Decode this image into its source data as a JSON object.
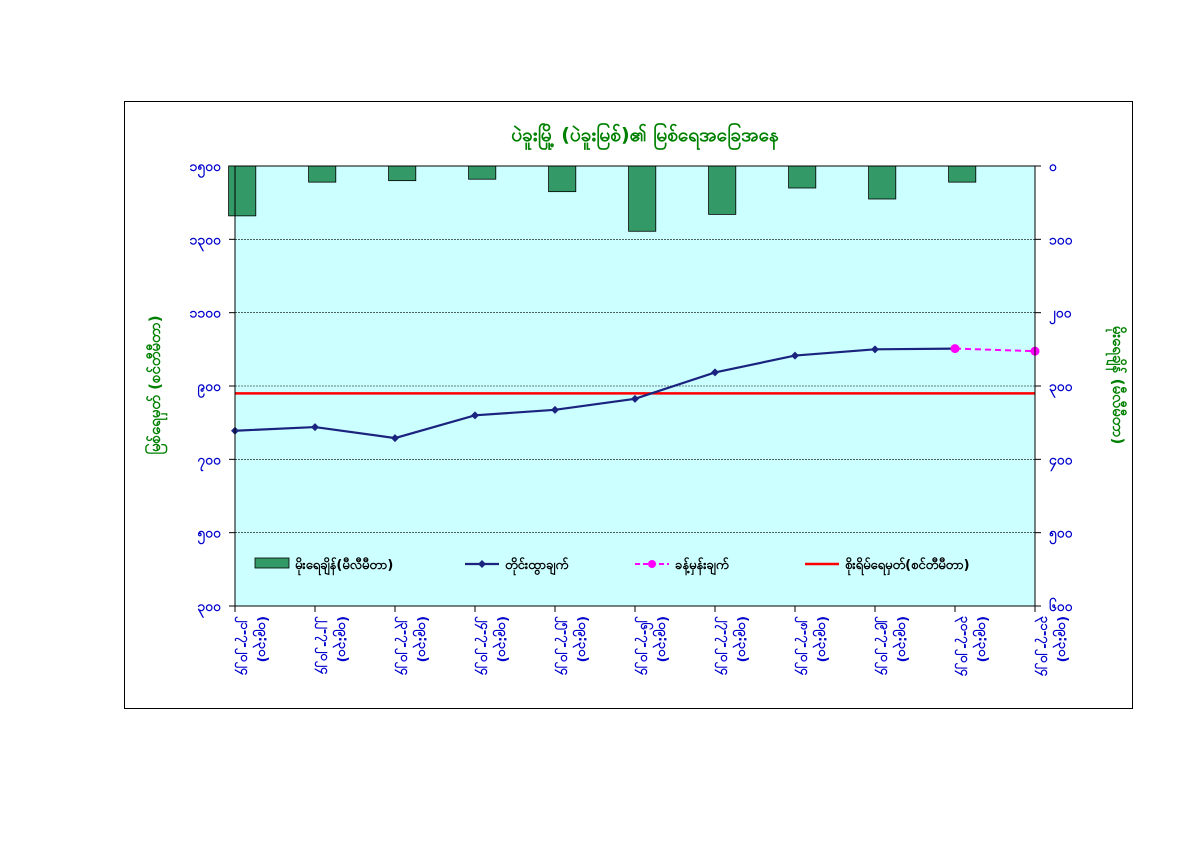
{
  "chart_data": {
    "type": "bar+line",
    "title": "ပဲခူးမြို့ (ပဲခူးမြစ်)၏ မြစ်ရေအခြေအနေ",
    "ylabel_left": "မြစ်ရေမှတ် (စင်တီမီတာ)",
    "ylabel_right": "မိုးရေချိန် (မီလီမီတာ)",
    "yticks_left": [
      "၁၅၀၀",
      "၁၃၀၀",
      "၁၁၀၀",
      "၉၀၀",
      "၇၀၀",
      "၅၀၀",
      "၃၀၀"
    ],
    "yticks_right": [
      "၀",
      "၁၀၀",
      "၂၀၀",
      "၃၀၀",
      "၄၀၀",
      "၅၀၀",
      "၆၀၀"
    ],
    "ylim_left": [
      300,
      1500
    ],
    "ylim_right": [
      0,
      600
    ],
    "categories": [
      [
        "၂၁-၇-၂၀၂၄",
        "(၀၉:၃၀)"
      ],
      [
        "၂၂-၇-၂၀၂၄",
        "(၀၉:၃၀)"
      ],
      [
        "၂၃-၇-၂၀၂၄",
        "(၀၉:၃၀)"
      ],
      [
        "၂၄-၇-၂၀၂၄",
        "(၀၉:၃၀)"
      ],
      [
        "၂၅-၇-၂၀၂၄",
        "(၀၉:၃၀)"
      ],
      [
        "၂၆-၇-၂၀၂၄",
        "(၀၉:၃၀)"
      ],
      [
        "၂၇-၇-၂၀၂၄",
        "(၀၉:၃၀)"
      ],
      [
        "၂၈-၇-၂၀၂၄",
        "(၀၉:၃၀)"
      ],
      [
        "၂၉-၇-၂၀၂၄",
        "(၀၉:၃၀)"
      ],
      [
        "၃၀-၇-၂၀၂၄",
        "(၀၉:၃၀)"
      ],
      [
        "၃၁-၇-၂၀၂၄",
        "(၀၉:၃၀)"
      ]
    ],
    "series": [
      {
        "name": "မိုးရေချိန်(မီလီမီတာ)",
        "kind": "bar",
        "axis": "right",
        "color": "#339966",
        "values": [
          68,
          22,
          20,
          18,
          35,
          89,
          66,
          30,
          45,
          22,
          null
        ]
      },
      {
        "name": "တိုင်းထွာချက်",
        "kind": "line",
        "axis": "left",
        "color": "#1a237e",
        "values": [
          778,
          788,
          758,
          820,
          835,
          865,
          937,
          983,
          1000,
          1002,
          null
        ]
      },
      {
        "name": "ခန့်မှန်းချက်",
        "kind": "dashed-line",
        "axis": "left",
        "color": "#ff00ff",
        "values": [
          null,
          null,
          null,
          null,
          null,
          null,
          null,
          null,
          null,
          1002,
          995
        ]
      },
      {
        "name": "စိုးရိမ်ရေမှတ်(စင်တီမီတာ)",
        "kind": "hline",
        "axis": "left",
        "color": "#ff0000",
        "value": 880
      }
    ],
    "grid": true,
    "legend_position": "bottom-inside",
    "colors": {
      "plot_bg": "#ccffff",
      "title": "#008000",
      "ticks": "#0000cc",
      "axis_label": "#008000"
    }
  }
}
